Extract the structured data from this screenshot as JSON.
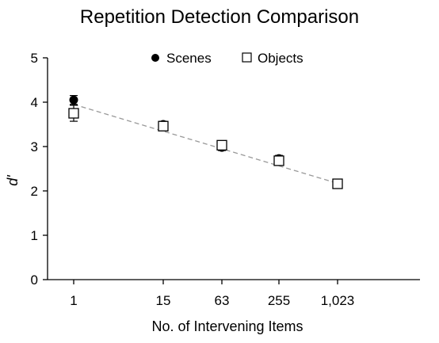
{
  "chart_data": {
    "type": "scatter",
    "title": "Repetition Detection Comparison",
    "xlabel": "No. of Intervening Items",
    "ylabel": "d'",
    "categories": [
      "1",
      "15",
      "63",
      "255",
      "1,023"
    ],
    "ylim": [
      0,
      5
    ],
    "yticks": [
      "0",
      "1",
      "2",
      "3",
      "4",
      "5"
    ],
    "legend_position": "top",
    "grid": false,
    "series": [
      {
        "name": "Scenes",
        "marker": "filled-circle",
        "values": [
          4.05,
          3.5,
          2.98,
          2.73,
          2.15
        ],
        "errors": [
          0.1,
          0.07,
          0.07,
          0.07,
          0.05
        ]
      },
      {
        "name": "Objects",
        "marker": "open-square",
        "values": [
          3.75,
          3.46,
          3.03,
          2.68,
          2.16
        ],
        "errors": [
          0.18,
          0.08,
          0.08,
          0.07,
          0.05
        ]
      }
    ],
    "trendline": {
      "style": "dashed",
      "start": [
        1,
        3.95
      ],
      "end": [
        5,
        2.17
      ]
    }
  }
}
